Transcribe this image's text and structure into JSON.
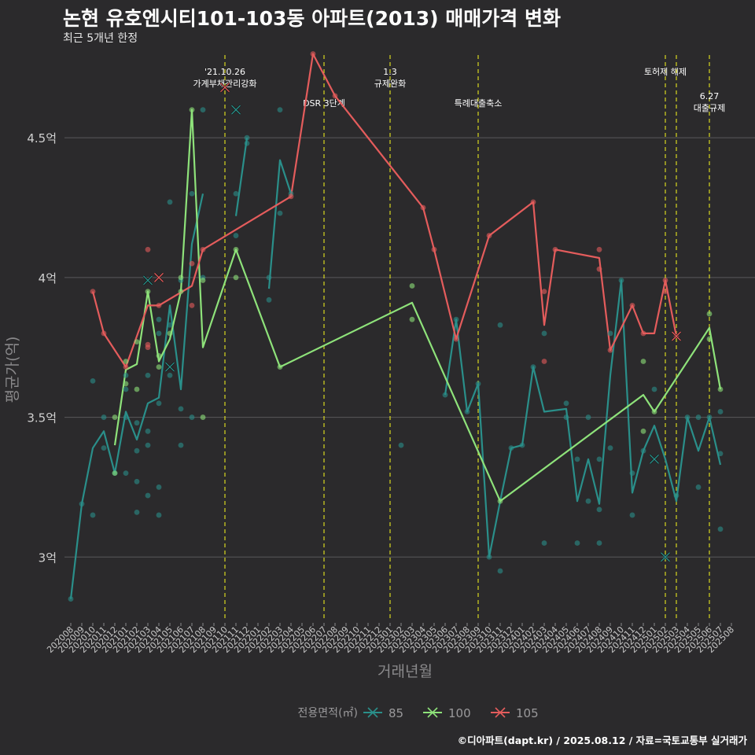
{
  "title": "논현 유호엔시티101-103동 아파트(2013) 매매가격 변화",
  "subtitle": "최근 5개년 한정",
  "caption": "©디아파트(dapt.kr) / 2025.08.12 / 자료=국토교통부 실거래가",
  "colors": {
    "background": "#2b2a2c",
    "grid": "#5a595b",
    "vline": "#d8d820",
    "s85": "#2a8f8a",
    "s100": "#8ee27a",
    "s105": "#e45c5c"
  },
  "chart_data": {
    "type": "line",
    "xlabel": "거래년월",
    "ylabel": "평균가(억)",
    "ylim": [
      2.77,
      4.81
    ],
    "yticks": [
      {
        "value": 3.0,
        "label": "3억"
      },
      {
        "value": 3.5,
        "label": "3.5억"
      },
      {
        "value": 4.0,
        "label": "4억"
      },
      {
        "value": 4.5,
        "label": "4.5억"
      }
    ],
    "categories": [
      "202008",
      "202009",
      "202010",
      "202011",
      "202012",
      "202101",
      "202102",
      "202103",
      "202104",
      "202105",
      "202106",
      "202107",
      "202108",
      "202109",
      "202110",
      "202111",
      "202112",
      "202201",
      "202202",
      "202203",
      "202204",
      "202205",
      "202206",
      "202207",
      "202208",
      "202209",
      "202210",
      "202211",
      "202212",
      "202301",
      "202302",
      "202303",
      "202304",
      "202305",
      "202306",
      "202307",
      "202308",
      "202309",
      "202310",
      "202311",
      "202312",
      "202401",
      "202402",
      "202403",
      "202404",
      "202405",
      "202406",
      "202407",
      "202408",
      "202409",
      "202410",
      "202411",
      "202412",
      "202501",
      "202502",
      "202503",
      "202504",
      "202505",
      "202506",
      "202507",
      "202508"
    ],
    "legend": {
      "title": "전용면적(㎡)",
      "position": "bottom"
    },
    "events": [
      {
        "x": "202110",
        "label": "'21.10.26\n가계부채관리강화",
        "row": 0
      },
      {
        "x": "202207",
        "label": "DSR 3단계",
        "row": 1
      },
      {
        "x": "202301",
        "label": "1.3\n규제완화",
        "row": 0
      },
      {
        "x": "202309",
        "label": "특례대출축소",
        "row": 1
      },
      {
        "x": "202502",
        "label": "토허제 해제",
        "row": 0
      },
      {
        "x": "202503",
        "label": "",
        "row": 0
      },
      {
        "x": "202506",
        "label": "6.27\n대출규제",
        "row": 1
      }
    ],
    "series": [
      {
        "name": "85",
        "color": "#2a8f8a",
        "line": [
          [
            "202008",
            2.85
          ],
          [
            "202009",
            3.19
          ],
          [
            "202010",
            3.39
          ],
          [
            "202011",
            3.45
          ],
          [
            "202012",
            3.3
          ],
          [
            "202101",
            3.52
          ],
          [
            "202102",
            3.42
          ],
          [
            "202103",
            3.55
          ],
          [
            "202104",
            3.57
          ],
          [
            "202105",
            3.9
          ],
          [
            "202106",
            3.6
          ],
          [
            "202107",
            4.12
          ],
          [
            "202108",
            4.3
          ],
          null,
          [
            "202111",
            4.22
          ],
          [
            "202112",
            4.5
          ],
          null,
          [
            "202202",
            3.96
          ],
          [
            "202203",
            4.42
          ],
          [
            "202204",
            4.3
          ],
          null,
          [
            "202302",
            3.4
          ],
          null,
          [
            "202306",
            3.58
          ],
          [
            "202307",
            3.85
          ],
          [
            "202308",
            3.52
          ],
          [
            "202309",
            3.62
          ],
          [
            "202310",
            3.0
          ],
          [
            "202311",
            3.2
          ],
          [
            "202312",
            3.39
          ],
          [
            "202401",
            3.4
          ],
          [
            "202402",
            3.68
          ],
          [
            "202403",
            3.52
          ],
          [
            "202405",
            3.53
          ],
          [
            "202406",
            3.2
          ],
          [
            "202407",
            3.35
          ],
          [
            "202408",
            3.19
          ],
          [
            "202409",
            3.65
          ],
          [
            "202410",
            3.99
          ],
          [
            "202411",
            3.23
          ],
          [
            "202412",
            3.38
          ],
          [
            "202501",
            3.47
          ],
          [
            "202502",
            3.35
          ],
          [
            "202503",
            3.2
          ],
          [
            "202504",
            3.5
          ],
          [
            "202505",
            3.38
          ],
          [
            "202506",
            3.5
          ],
          [
            "202507",
            3.33
          ]
        ],
        "points": [
          [
            "202008",
            2.85
          ],
          [
            "202009",
            3.19
          ],
          [
            "202010",
            3.63
          ],
          [
            "202010",
            3.15
          ],
          [
            "202011",
            3.39
          ],
          [
            "202011",
            3.5
          ],
          [
            "202012",
            3.3
          ],
          [
            "202101",
            3.6
          ],
          [
            "202101",
            3.3
          ],
          [
            "202101",
            3.5
          ],
          [
            "202101",
            3.65
          ],
          [
            "202102",
            3.48
          ],
          [
            "202102",
            3.38
          ],
          [
            "202102",
            3.27
          ],
          [
            "202102",
            3.16
          ],
          [
            "202103",
            3.45
          ],
          [
            "202103",
            3.65
          ],
          [
            "202103",
            3.4
          ],
          [
            "202103",
            3.22
          ],
          [
            "202104",
            3.85
          ],
          [
            "202104",
            3.8
          ],
          [
            "202104",
            3.55
          ],
          [
            "202104",
            3.25
          ],
          [
            "202104",
            3.15
          ],
          [
            "202105",
            4.27
          ],
          [
            "202105",
            3.83
          ],
          [
            "202105",
            3.65
          ],
          [
            "202106",
            3.99
          ],
          [
            "202106",
            3.53
          ],
          [
            "202106",
            3.4
          ],
          [
            "202107",
            3.5
          ],
          [
            "202107",
            4.3
          ],
          [
            "202108",
            4.6
          ],
          [
            "202108",
            4.0
          ],
          [
            "202111",
            4.3
          ],
          [
            "202111",
            4.15
          ],
          [
            "202112",
            4.5
          ],
          [
            "202112",
            4.48
          ],
          [
            "202202",
            3.92
          ],
          [
            "202202",
            4.0
          ],
          [
            "202203",
            4.6
          ],
          [
            "202203",
            4.23
          ],
          [
            "202204",
            4.3
          ],
          [
            "202302",
            3.4
          ],
          [
            "202306",
            3.58
          ],
          [
            "202307",
            3.85
          ],
          [
            "202308",
            3.52
          ],
          [
            "202309",
            3.62
          ],
          [
            "202310",
            3.0
          ],
          [
            "202311",
            3.83
          ],
          [
            "202311",
            2.95
          ],
          [
            "202312",
            3.39
          ],
          [
            "202401",
            3.4
          ],
          [
            "202402",
            3.68
          ],
          [
            "202403",
            3.8
          ],
          [
            "202403",
            3.05
          ],
          [
            "202405",
            3.55
          ],
          [
            "202405",
            3.5
          ],
          [
            "202406",
            3.35
          ],
          [
            "202406",
            3.05
          ],
          [
            "202407",
            3.5
          ],
          [
            "202407",
            3.2
          ],
          [
            "202408",
            3.35
          ],
          [
            "202408",
            3.17
          ],
          [
            "202408",
            3.05
          ],
          [
            "202409",
            3.8
          ],
          [
            "202409",
            3.39
          ],
          [
            "202410",
            3.99
          ],
          [
            "202411",
            3.15
          ],
          [
            "202411",
            3.3
          ],
          [
            "202412",
            3.38
          ],
          [
            "202501",
            3.6
          ],
          [
            "202502",
            3.0
          ],
          [
            "202503",
            3.22
          ],
          [
            "202504",
            3.5
          ],
          [
            "202505",
            3.25
          ],
          [
            "202505",
            3.5
          ],
          [
            "202506",
            3.5
          ],
          [
            "202507",
            3.52
          ],
          [
            "202507",
            3.37
          ],
          [
            "202507",
            3.1
          ]
        ],
        "crosses": [
          [
            "202103",
            3.99
          ],
          [
            "202105",
            3.68
          ],
          [
            "202111",
            4.6
          ],
          [
            "202501",
            3.35
          ],
          [
            "202502",
            3.0
          ]
        ]
      },
      {
        "name": "100",
        "color": "#8ee27a",
        "line": [
          [
            "202012",
            3.4
          ],
          [
            "202101",
            3.67
          ],
          [
            "202102",
            3.69
          ],
          [
            "202103",
            3.95
          ],
          [
            "202104",
            3.7
          ],
          [
            "202105",
            3.78
          ],
          [
            "202106",
            3.95
          ],
          [
            "202107",
            4.6
          ],
          [
            "202108",
            3.75
          ],
          [
            "202111",
            4.1
          ],
          [
            "202203",
            3.68
          ],
          [
            "202303",
            3.91
          ],
          [
            "202311",
            3.2
          ],
          [
            "202412",
            3.58
          ],
          [
            "202501",
            3.52
          ],
          [
            "202506",
            3.82
          ],
          [
            "202507",
            3.6
          ]
        ],
        "points": [
          [
            "202012",
            3.5
          ],
          [
            "202012",
            3.3
          ],
          [
            "202101",
            3.7
          ],
          [
            "202101",
            3.62
          ],
          [
            "202102",
            3.6
          ],
          [
            "202102",
            3.77
          ],
          [
            "202103",
            3.95
          ],
          [
            "202104",
            3.72
          ],
          [
            "202104",
            3.68
          ],
          [
            "202105",
            3.8
          ],
          [
            "202106",
            3.95
          ],
          [
            "202106",
            4.0
          ],
          [
            "202107",
            4.6
          ],
          [
            "202108",
            3.99
          ],
          [
            "202108",
            3.5
          ],
          [
            "202111",
            4.1
          ],
          [
            "202111",
            4.0
          ],
          [
            "202203",
            3.68
          ],
          [
            "202303",
            3.97
          ],
          [
            "202303",
            3.85
          ],
          [
            "202311",
            3.2
          ],
          [
            "202412",
            3.7
          ],
          [
            "202412",
            3.45
          ],
          [
            "202501",
            3.52
          ],
          [
            "202506",
            3.87
          ],
          [
            "202506",
            3.78
          ],
          [
            "202507",
            3.6
          ]
        ],
        "crosses": []
      },
      {
        "name": "105",
        "color": "#e45c5c",
        "line": [
          [
            "202010",
            3.95
          ],
          [
            "202011",
            3.8
          ],
          [
            "202101",
            3.68
          ],
          [
            "202103",
            3.9
          ],
          [
            "202104",
            3.9
          ],
          [
            "202107",
            3.97
          ],
          [
            "202108",
            4.1
          ],
          [
            "202204",
            4.29
          ],
          [
            "202206",
            4.8
          ],
          [
            "202208",
            4.65
          ],
          [
            "202304",
            4.25
          ],
          [
            "202305",
            4.1
          ],
          [
            "202307",
            3.78
          ],
          [
            "202310",
            4.15
          ],
          [
            "202402",
            4.27
          ],
          [
            "202403",
            3.83
          ],
          [
            "202404",
            4.1
          ],
          [
            "202408",
            4.07
          ],
          [
            "202409",
            3.74
          ],
          [
            "202411",
            3.9
          ],
          [
            "202412",
            3.8
          ],
          [
            "202501",
            3.8
          ],
          [
            "202502",
            3.99
          ],
          [
            "202503",
            3.79
          ]
        ],
        "points": [
          [
            "202010",
            3.95
          ],
          [
            "202011",
            3.8
          ],
          [
            "202101",
            3.68
          ],
          [
            "202103",
            4.1
          ],
          [
            "202103",
            3.76
          ],
          [
            "202103",
            3.75
          ],
          [
            "202104",
            3.9
          ],
          [
            "202107",
            4.05
          ],
          [
            "202107",
            3.9
          ],
          [
            "202108",
            4.1
          ],
          [
            "202204",
            4.29
          ],
          [
            "202206",
            4.8
          ],
          [
            "202208",
            4.65
          ],
          [
            "202304",
            4.25
          ],
          [
            "202305",
            4.1
          ],
          [
            "202307",
            3.78
          ],
          [
            "202310",
            4.15
          ],
          [
            "202402",
            4.27
          ],
          [
            "202403",
            3.95
          ],
          [
            "202403",
            3.7
          ],
          [
            "202404",
            4.1
          ],
          [
            "202408",
            4.1
          ],
          [
            "202408",
            4.03
          ],
          [
            "202409",
            3.74
          ],
          [
            "202411",
            3.9
          ],
          [
            "202412",
            3.8
          ],
          [
            "202502",
            3.99
          ],
          [
            "202502",
            3.95
          ],
          [
            "202503",
            3.79
          ]
        ],
        "crosses": [
          [
            "202104",
            4.0
          ],
          [
            "202110",
            4.68
          ],
          [
            "202503",
            3.79
          ]
        ]
      }
    ]
  }
}
